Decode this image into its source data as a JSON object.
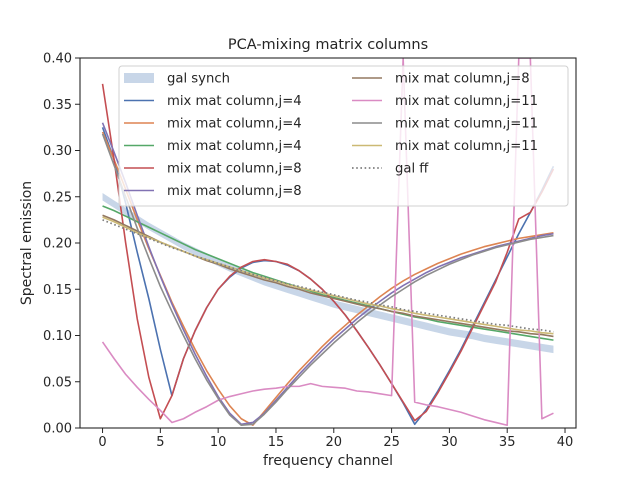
{
  "chart_data": {
    "type": "line",
    "title": "PCA-mixing matrix columns",
    "xlabel": "frequency channel",
    "ylabel": "Spectral emission",
    "xlim": [
      -1.95,
      40.95
    ],
    "ylim": [
      0.0,
      0.4
    ],
    "xticks": [
      0,
      5,
      10,
      15,
      20,
      25,
      30,
      35,
      40
    ],
    "yticks": [
      0.0,
      0.05,
      0.1,
      0.15,
      0.2,
      0.25,
      0.3,
      0.35,
      0.4
    ],
    "ytick_labels": [
      "0.00",
      "0.05",
      "0.10",
      "0.15",
      "0.20",
      "0.25",
      "0.30",
      "0.35",
      "0.40"
    ],
    "grid": false,
    "legend_position": "top",
    "legend_columns": 2,
    "legend": [
      "gal synch",
      "mix mat column,j=4",
      "mix mat column,j=4",
      "mix mat column,j=4",
      "mix mat column,j=8",
      "mix mat column,j=8",
      "mix mat column,j=8",
      "mix mat column,j=11",
      "mix mat column,j=11",
      "mix mat column,j=11",
      "gal ff"
    ],
    "x": [
      0,
      1,
      2,
      3,
      4,
      5,
      6,
      7,
      8,
      9,
      10,
      11,
      12,
      13,
      14,
      15,
      16,
      17,
      18,
      19,
      20,
      21,
      22,
      23,
      24,
      25,
      26,
      27,
      28,
      29,
      30,
      31,
      32,
      33,
      34,
      35,
      36,
      37,
      38,
      39
    ],
    "series": [
      {
        "name": "gal synch",
        "style": "band",
        "color": "#b0c4de",
        "values": [
          0.25,
          0.242,
          0.234,
          0.226,
          0.218,
          0.211,
          0.204,
          0.197,
          0.191,
          0.185,
          0.179,
          0.173,
          0.168,
          0.163,
          0.158,
          0.154,
          0.15,
          0.146,
          0.142,
          0.138,
          0.134,
          0.131,
          0.128,
          0.125,
          0.122,
          0.119,
          0.116,
          0.113,
          0.11,
          0.107,
          0.104,
          0.102,
          0.1,
          0.097,
          0.095,
          0.093,
          0.091,
          0.089,
          0.087,
          0.085
        ],
        "band_half_width": 0.004
      },
      {
        "name": "mix mat column,j=4",
        "color": "#4c72b0",
        "values": [
          0.325,
          0.29,
          0.243,
          0.19,
          0.14,
          0.085,
          0.035,
          0.075,
          0.105,
          0.13,
          0.15,
          0.163,
          0.173,
          0.179,
          0.181,
          0.18,
          0.176,
          0.17,
          0.161,
          0.15,
          0.137,
          0.122,
          0.105,
          0.087,
          0.068,
          0.048,
          0.027,
          0.004,
          0.02,
          0.04,
          0.062,
          0.085,
          0.11,
          0.135,
          0.16,
          0.185,
          0.21,
          0.233,
          0.257,
          0.283
        ]
      },
      {
        "name": "mix mat column,j=4",
        "color": "#dd8452",
        "values": [
          0.32,
          0.29,
          0.258,
          0.225,
          0.194,
          0.165,
          0.136,
          0.11,
          0.085,
          0.062,
          0.042,
          0.024,
          0.01,
          0.003,
          0.018,
          0.033,
          0.048,
          0.062,
          0.075,
          0.088,
          0.1,
          0.111,
          0.122,
          0.132,
          0.142,
          0.151,
          0.159,
          0.166,
          0.172,
          0.178,
          0.183,
          0.188,
          0.192,
          0.196,
          0.199,
          0.202,
          0.205,
          0.207,
          0.209,
          0.211
        ]
      },
      {
        "name": "mix mat column,j=4",
        "color": "#55a868",
        "values": [
          0.24,
          0.235,
          0.229,
          0.223,
          0.217,
          0.211,
          0.205,
          0.199,
          0.193,
          0.188,
          0.183,
          0.178,
          0.173,
          0.168,
          0.164,
          0.16,
          0.156,
          0.152,
          0.148,
          0.144,
          0.141,
          0.138,
          0.135,
          0.132,
          0.129,
          0.126,
          0.123,
          0.12,
          0.118,
          0.115,
          0.113,
          0.111,
          0.109,
          0.107,
          0.105,
          0.103,
          0.101,
          0.099,
          0.097,
          0.095
        ]
      },
      {
        "name": "mix mat column,j=8",
        "color": "#c44e52",
        "values": [
          0.372,
          0.29,
          0.2,
          0.118,
          0.055,
          0.01,
          0.035,
          0.075,
          0.105,
          0.13,
          0.15,
          0.164,
          0.174,
          0.18,
          0.182,
          0.18,
          0.177,
          0.17,
          0.161,
          0.15,
          0.137,
          0.122,
          0.105,
          0.087,
          0.068,
          0.048,
          0.028,
          0.008,
          0.018,
          0.038,
          0.06,
          0.083,
          0.108,
          0.133,
          0.158,
          0.19,
          0.226,
          0.233,
          0.255,
          0.28
        ]
      },
      {
        "name": "mix mat column,j=8",
        "color": "#8172b3",
        "values": [
          0.33,
          0.298,
          0.265,
          0.23,
          0.196,
          0.164,
          0.134,
          0.106,
          0.08,
          0.056,
          0.034,
          0.016,
          0.004,
          0.006,
          0.016,
          0.03,
          0.044,
          0.058,
          0.071,
          0.084,
          0.096,
          0.107,
          0.118,
          0.128,
          0.137,
          0.146,
          0.154,
          0.161,
          0.168,
          0.174,
          0.179,
          0.184,
          0.188,
          0.192,
          0.196,
          0.199,
          0.202,
          0.205,
          0.208,
          0.21
        ]
      },
      {
        "name": "mix mat column,j=8",
        "color": "#937860",
        "values": [
          0.23,
          0.225,
          0.219,
          0.213,
          0.207,
          0.201,
          0.196,
          0.191,
          0.186,
          0.181,
          0.177,
          0.172,
          0.168,
          0.164,
          0.16,
          0.157,
          0.153,
          0.15,
          0.146,
          0.143,
          0.14,
          0.137,
          0.134,
          0.131,
          0.129,
          0.126,
          0.124,
          0.121,
          0.119,
          0.117,
          0.115,
          0.113,
          0.111,
          0.109,
          0.107,
          0.105,
          0.104,
          0.102,
          0.101,
          0.099
        ]
      },
      {
        "name": "mix mat column,j=11",
        "color": "#da8bc3",
        "values": [
          0.093,
          0.075,
          0.058,
          0.044,
          0.031,
          0.019,
          0.006,
          0.01,
          0.017,
          0.023,
          0.03,
          0.034,
          0.037,
          0.04,
          0.042,
          0.043,
          0.045,
          0.045,
          0.048,
          0.045,
          0.044,
          0.043,
          0.04,
          0.039,
          0.037,
          0.035,
          0.4,
          0.028,
          0.025,
          0.023,
          0.02,
          0.017,
          0.013,
          0.009,
          0.006,
          0.003,
          0.4,
          0.4,
          0.01,
          0.016
        ]
      },
      {
        "name": "mix mat column,j=11",
        "color": "#8c8c8c",
        "values": [
          0.318,
          0.284,
          0.25,
          0.216,
          0.184,
          0.153,
          0.126,
          0.1,
          0.075,
          0.052,
          0.032,
          0.014,
          0.003,
          0.004,
          0.015,
          0.028,
          0.042,
          0.055,
          0.068,
          0.08,
          0.092,
          0.103,
          0.114,
          0.124,
          0.133,
          0.142,
          0.15,
          0.158,
          0.165,
          0.171,
          0.177,
          0.182,
          0.187,
          0.191,
          0.195,
          0.198,
          0.201,
          0.204,
          0.206,
          0.208
        ]
      },
      {
        "name": "mix mat column,j=11",
        "color": "#ccb974",
        "values": [
          0.228,
          0.223,
          0.217,
          0.211,
          0.206,
          0.201,
          0.196,
          0.191,
          0.186,
          0.182,
          0.178,
          0.174,
          0.17,
          0.166,
          0.162,
          0.159,
          0.155,
          0.152,
          0.149,
          0.146,
          0.143,
          0.14,
          0.137,
          0.134,
          0.132,
          0.129,
          0.127,
          0.124,
          0.122,
          0.12,
          0.118,
          0.116,
          0.114,
          0.112,
          0.11,
          0.108,
          0.106,
          0.105,
          0.103,
          0.102
        ]
      },
      {
        "name": "gal ff",
        "color": "#7f7f7f",
        "style": "dotted",
        "values": [
          0.225,
          0.22,
          0.215,
          0.21,
          0.205,
          0.2,
          0.195,
          0.191,
          0.186,
          0.182,
          0.178,
          0.174,
          0.17,
          0.166,
          0.163,
          0.159,
          0.156,
          0.153,
          0.15,
          0.147,
          0.144,
          0.141,
          0.138,
          0.136,
          0.133,
          0.131,
          0.128,
          0.126,
          0.124,
          0.122,
          0.12,
          0.118,
          0.116,
          0.114,
          0.112,
          0.111,
          0.109,
          0.107,
          0.106,
          0.104
        ]
      }
    ]
  }
}
